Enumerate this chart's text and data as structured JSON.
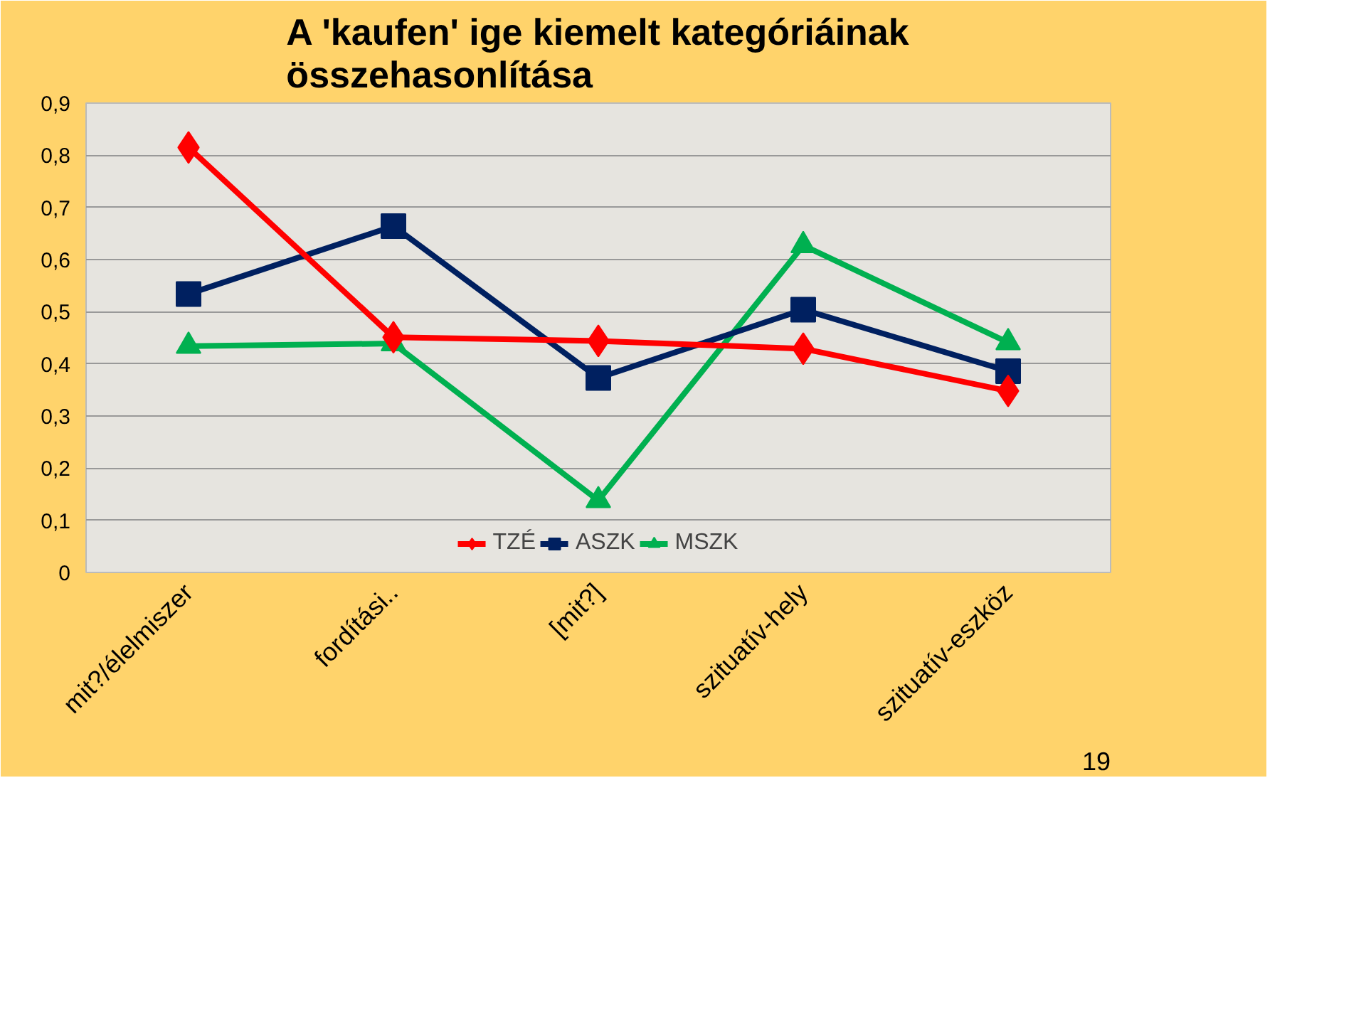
{
  "chart_data": {
    "type": "line",
    "title": "A 'kaufen' ige kiemelt kategóriáinak összehasonlítása",
    "categories": [
      "mit?/élelmiszer",
      "fordítási..",
      "[mit?]",
      "szituatív-hely",
      "szituatív-eszköz"
    ],
    "series": [
      {
        "name": "TZÉ",
        "color": "#ff0000",
        "marker": "diamond",
        "values": [
          0.815,
          0.451,
          0.444,
          0.429,
          0.348
        ]
      },
      {
        "name": "ASZK",
        "color": "#002060",
        "marker": "square",
        "values": [
          0.534,
          0.664,
          0.373,
          0.504,
          0.386
        ]
      },
      {
        "name": "MSZK",
        "color": "#00b050",
        "marker": "triangle",
        "values": [
          0.434,
          0.439,
          0.138,
          0.627,
          0.441
        ]
      }
    ],
    "ylim": [
      0,
      0.9
    ],
    "yticks": [
      {
        "value": 0,
        "label": "0"
      },
      {
        "value": 0.1,
        "label": "0,1"
      },
      {
        "value": 0.2,
        "label": "0,2"
      },
      {
        "value": 0.3,
        "label": "0,3"
      },
      {
        "value": 0.4,
        "label": "0,4"
      },
      {
        "value": 0.5,
        "label": "0,5"
      },
      {
        "value": 0.6,
        "label": "0,6"
      },
      {
        "value": 0.7,
        "label": "0,7"
      },
      {
        "value": 0.8,
        "label": "0,8"
      },
      {
        "value": 0.9,
        "label": "0,9"
      }
    ],
    "grid": "y",
    "legend": "bottom",
    "line_style": "solid",
    "annotations": [
      "19"
    ]
  }
}
